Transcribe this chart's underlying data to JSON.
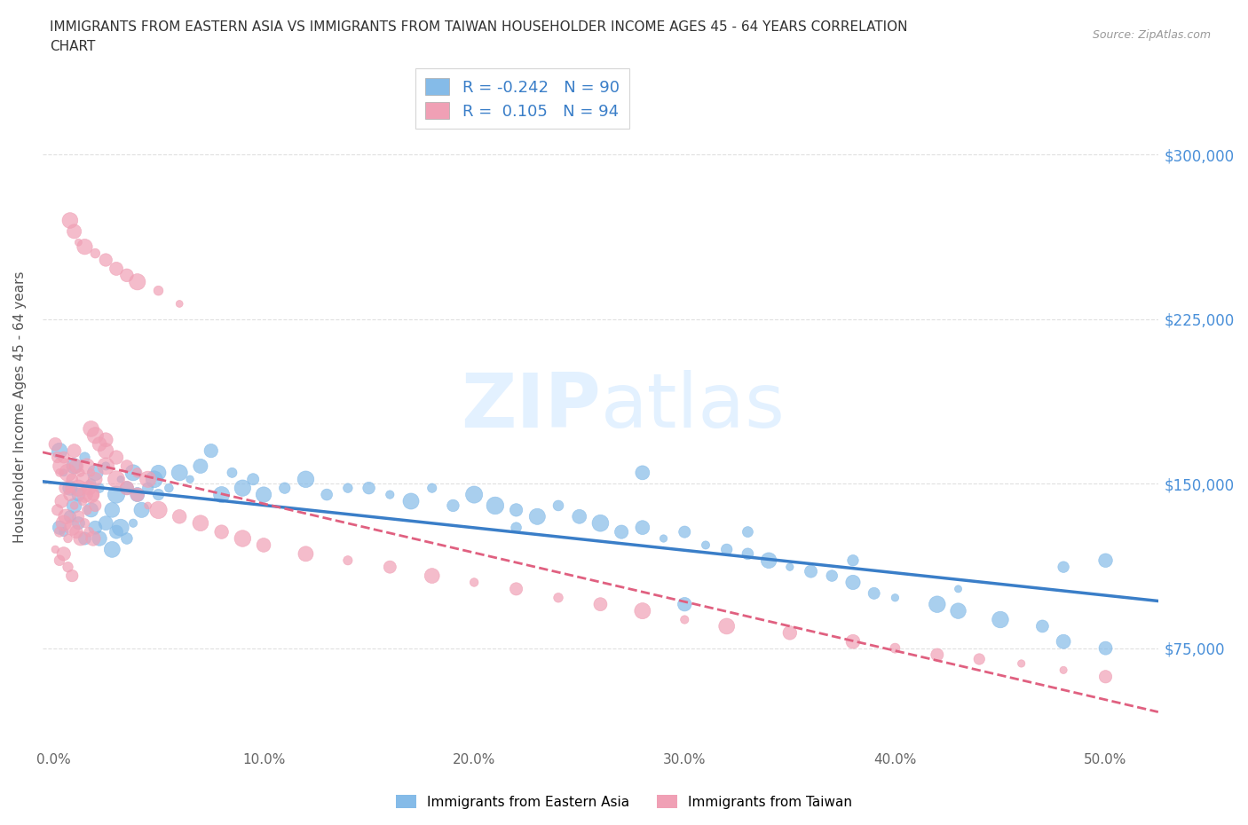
{
  "title": "IMMIGRANTS FROM EASTERN ASIA VS IMMIGRANTS FROM TAIWAN HOUSEHOLDER INCOME AGES 45 - 64 YEARS CORRELATION\nCHART",
  "source": "Source: ZipAtlas.com",
  "ylabel": "Householder Income Ages 45 - 64 years",
  "xlim": [
    -0.005,
    0.525
  ],
  "ylim": [
    30000,
    340000
  ],
  "xticks": [
    0.0,
    0.1,
    0.2,
    0.3,
    0.4,
    0.5
  ],
  "xticklabels": [
    "0.0%",
    "10.0%",
    "20.0%",
    "30.0%",
    "40.0%",
    "50.0%"
  ],
  "yticks": [
    75000,
    150000,
    225000,
    300000
  ],
  "yticklabels": [
    "$75,000",
    "$150,000",
    "$225,000",
    "$300,000"
  ],
  "R_eastern": -0.242,
  "N_eastern": 90,
  "R_taiwan": 0.105,
  "N_taiwan": 94,
  "blue_color": "#85BBE8",
  "pink_color": "#F0A0B5",
  "blue_line_color": "#3A7EC8",
  "pink_line_color": "#E06080",
  "pink_line_style": "--",
  "blue_line_style": "-",
  "watermark": "ZIPatlas",
  "legend_label_eastern": "Immigrants from Eastern Asia",
  "legend_label_taiwan": "Immigrants from Taiwan",
  "eastern_x": [
    0.003,
    0.005,
    0.008,
    0.01,
    0.012,
    0.015,
    0.018,
    0.02,
    0.022,
    0.025,
    0.028,
    0.03,
    0.032,
    0.035,
    0.038,
    0.04,
    0.042,
    0.045,
    0.048,
    0.05,
    0.003,
    0.005,
    0.008,
    0.01,
    0.012,
    0.015,
    0.018,
    0.02,
    0.022,
    0.025,
    0.028,
    0.03,
    0.032,
    0.035,
    0.038,
    0.05,
    0.055,
    0.06,
    0.065,
    0.07,
    0.075,
    0.08,
    0.085,
    0.09,
    0.095,
    0.1,
    0.11,
    0.12,
    0.13,
    0.14,
    0.15,
    0.16,
    0.17,
    0.18,
    0.19,
    0.2,
    0.21,
    0.22,
    0.23,
    0.24,
    0.25,
    0.26,
    0.27,
    0.28,
    0.29,
    0.3,
    0.31,
    0.32,
    0.33,
    0.34,
    0.35,
    0.36,
    0.37,
    0.38,
    0.39,
    0.4,
    0.42,
    0.43,
    0.45,
    0.47,
    0.48,
    0.5,
    0.28,
    0.33,
    0.38,
    0.43,
    0.48,
    0.22,
    0.3,
    0.5
  ],
  "eastern_y": [
    165000,
    155000,
    148000,
    158000,
    145000,
    162000,
    150000,
    155000,
    148000,
    158000,
    138000,
    145000,
    152000,
    148000,
    155000,
    145000,
    138000,
    148000,
    152000,
    155000,
    130000,
    128000,
    135000,
    140000,
    132000,
    125000,
    138000,
    130000,
    125000,
    132000,
    120000,
    128000,
    130000,
    125000,
    132000,
    145000,
    148000,
    155000,
    152000,
    158000,
    165000,
    145000,
    155000,
    148000,
    152000,
    145000,
    148000,
    152000,
    145000,
    148000,
    148000,
    145000,
    142000,
    148000,
    140000,
    145000,
    140000,
    138000,
    135000,
    140000,
    135000,
    132000,
    128000,
    130000,
    125000,
    128000,
    122000,
    120000,
    118000,
    115000,
    112000,
    110000,
    108000,
    105000,
    100000,
    98000,
    95000,
    92000,
    88000,
    85000,
    78000,
    75000,
    155000,
    128000,
    115000,
    102000,
    112000,
    130000,
    95000,
    115000
  ],
  "taiwan_x": [
    0.001,
    0.002,
    0.003,
    0.004,
    0.005,
    0.006,
    0.007,
    0.008,
    0.009,
    0.01,
    0.011,
    0.012,
    0.013,
    0.014,
    0.015,
    0.016,
    0.017,
    0.018,
    0.019,
    0.02,
    0.002,
    0.004,
    0.006,
    0.008,
    0.01,
    0.012,
    0.014,
    0.016,
    0.018,
    0.02,
    0.003,
    0.005,
    0.007,
    0.009,
    0.011,
    0.013,
    0.015,
    0.017,
    0.019,
    0.001,
    0.003,
    0.005,
    0.007,
    0.009,
    0.025,
    0.03,
    0.035,
    0.04,
    0.045,
    0.05,
    0.06,
    0.07,
    0.08,
    0.09,
    0.1,
    0.12,
    0.14,
    0.16,
    0.18,
    0.2,
    0.22,
    0.24,
    0.26,
    0.28,
    0.3,
    0.32,
    0.35,
    0.38,
    0.4,
    0.42,
    0.44,
    0.46,
    0.48,
    0.5,
    0.025,
    0.03,
    0.035,
    0.04,
    0.045,
    0.025,
    0.018,
    0.02,
    0.022,
    0.008,
    0.01,
    0.012,
    0.015,
    0.02,
    0.025,
    0.03,
    0.035,
    0.04,
    0.05,
    0.06
  ],
  "taiwan_y": [
    168000,
    162000,
    155000,
    158000,
    162000,
    148000,
    155000,
    145000,
    152000,
    165000,
    158000,
    148000,
    155000,
    152000,
    145000,
    158000,
    148000,
    155000,
    145000,
    152000,
    138000,
    142000,
    135000,
    148000,
    140000,
    135000,
    142000,
    138000,
    145000,
    140000,
    128000,
    132000,
    125000,
    130000,
    128000,
    125000,
    132000,
    128000,
    125000,
    120000,
    115000,
    118000,
    112000,
    108000,
    158000,
    152000,
    148000,
    145000,
    140000,
    138000,
    135000,
    132000,
    128000,
    125000,
    122000,
    118000,
    115000,
    112000,
    108000,
    105000,
    102000,
    98000,
    95000,
    92000,
    88000,
    85000,
    82000,
    78000,
    75000,
    72000,
    70000,
    68000,
    65000,
    62000,
    165000,
    162000,
    158000,
    155000,
    152000,
    170000,
    175000,
    172000,
    168000,
    270000,
    265000,
    260000,
    258000,
    255000,
    252000,
    248000,
    245000,
    242000,
    238000,
    232000
  ]
}
